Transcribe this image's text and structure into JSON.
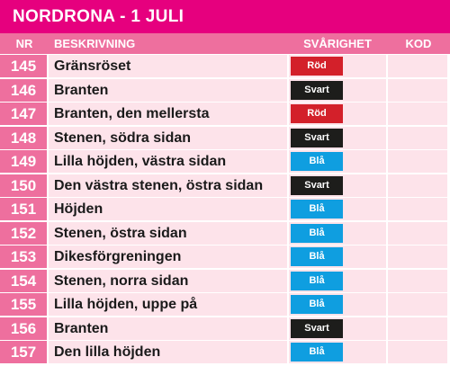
{
  "title": "NORDRONA - 1 JULI",
  "headers": {
    "nr": "NR",
    "description": "BESKRIVNING",
    "difficulty": "SVÅRIGHET",
    "code": "KOD"
  },
  "colors": {
    "Röd": "#d3202a",
    "Svart": "#1d1d1b",
    "Blå": "#0f9ee0"
  },
  "rows": [
    {
      "nr": "145",
      "description": "Gränsröset",
      "difficulty": "Röd"
    },
    {
      "nr": "146",
      "description": "Branten",
      "difficulty": "Svart"
    },
    {
      "nr": "147",
      "description": "Branten, den mellersta",
      "difficulty": "Röd"
    },
    {
      "nr": "148",
      "description": "Stenen, södra sidan",
      "difficulty": "Svart"
    },
    {
      "nr": "149",
      "description": "Lilla höjden, västra sidan",
      "difficulty": "Blå"
    },
    {
      "nr": "150",
      "description": "Den västra stenen, östra sidan",
      "difficulty": "Svart"
    },
    {
      "nr": "151",
      "description": "Höjden",
      "difficulty": "Blå"
    },
    {
      "nr": "152",
      "description": "Stenen, östra sidan",
      "difficulty": "Blå"
    },
    {
      "nr": "153",
      "description": "Dikesförgreningen",
      "difficulty": "Blå"
    },
    {
      "nr": "154",
      "description": "Stenen, norra sidan",
      "difficulty": "Blå"
    },
    {
      "nr": "155",
      "description": "Lilla höjden, uppe på",
      "difficulty": "Blå"
    },
    {
      "nr": "156",
      "description": "Branten",
      "difficulty": "Svart"
    },
    {
      "nr": "157",
      "description": "Den lilla höjden",
      "difficulty": "Blå"
    }
  ]
}
